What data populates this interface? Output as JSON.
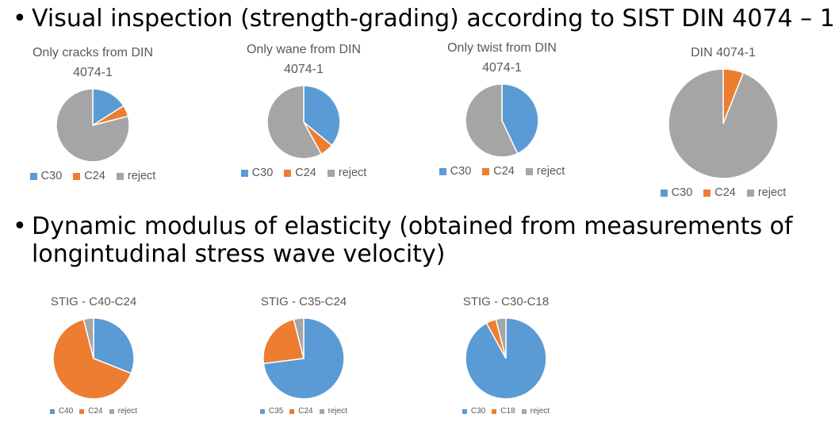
{
  "bullets": {
    "symbol": "•",
    "visual": "Visual inspection (strength-grading) according to SIST DIN 4074 – 1",
    "dynamic_line1": "Dynamic modulus of elasticity (obtained from measurements of",
    "dynamic_line2": "longintudinal stress wave velocity)"
  },
  "colors": {
    "blue": "#5B9BD5",
    "orange": "#ED7D31",
    "gray": "#A5A5A5"
  },
  "chart_data": [
    {
      "type": "pie",
      "title": "Only cracks from DIN\n4074-1",
      "slices": [
        {
          "label": "C30",
          "value": 16,
          "color": "#5B9BD5"
        },
        {
          "label": "C24",
          "value": 5,
          "color": "#ED7D31"
        },
        {
          "label": "reject",
          "value": 79,
          "color": "#A5A5A5"
        }
      ]
    },
    {
      "type": "pie",
      "title": "Only wane from DIN\n4074-1",
      "slices": [
        {
          "label": "C30",
          "value": 36,
          "color": "#5B9BD5"
        },
        {
          "label": "C24",
          "value": 6,
          "color": "#ED7D31"
        },
        {
          "label": "reject",
          "value": 58,
          "color": "#A5A5A5"
        }
      ]
    },
    {
      "type": "pie",
      "title": "Only twist from DIN\n4074-1",
      "slices": [
        {
          "label": "C30",
          "value": 43,
          "color": "#5B9BD5"
        },
        {
          "label": "C24",
          "value": 0,
          "color": "#ED7D31"
        },
        {
          "label": "reject",
          "value": 57,
          "color": "#A5A5A5"
        }
      ]
    },
    {
      "type": "pie",
      "title": "DIN 4074-1",
      "slices": [
        {
          "label": "C30",
          "value": 0,
          "color": "#5B9BD5"
        },
        {
          "label": "C24",
          "value": 6,
          "color": "#ED7D31"
        },
        {
          "label": "reject",
          "value": 94,
          "color": "#A5A5A5"
        }
      ]
    },
    {
      "type": "pie",
      "title": "STIG - C40-C24",
      "slices": [
        {
          "label": "C40",
          "value": 31,
          "color": "#5B9BD5"
        },
        {
          "label": "C24",
          "value": 65,
          "color": "#ED7D31"
        },
        {
          "label": "reject",
          "value": 4,
          "color": "#A5A5A5"
        }
      ]
    },
    {
      "type": "pie",
      "title": "STIG - C35-C24",
      "slices": [
        {
          "label": "C35",
          "value": 73,
          "color": "#5B9BD5"
        },
        {
          "label": "C24",
          "value": 23,
          "color": "#ED7D31"
        },
        {
          "label": "reject",
          "value": 4,
          "color": "#A5A5A5"
        }
      ]
    },
    {
      "type": "pie",
      "title": "STIG - C30-C18",
      "slices": [
        {
          "label": "C30",
          "value": 92,
          "color": "#5B9BD5"
        },
        {
          "label": "C18",
          "value": 4,
          "color": "#ED7D31"
        },
        {
          "label": "reject",
          "value": 4,
          "color": "#A5A5A5"
        }
      ]
    }
  ]
}
